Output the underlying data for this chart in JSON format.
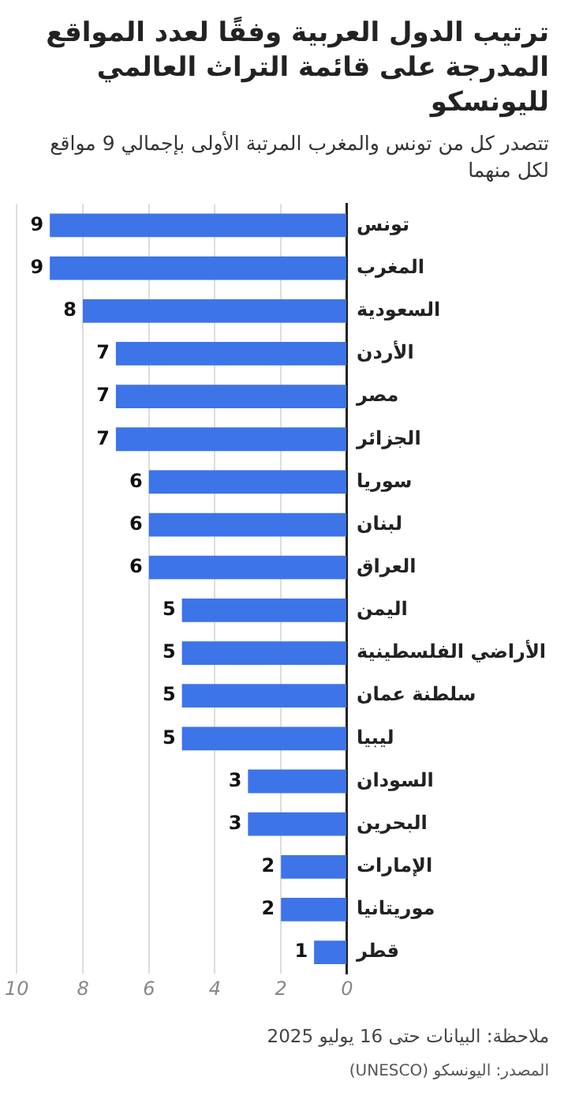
{
  "chart_data": {
    "type": "bar",
    "orientation": "horizontal",
    "title": "ترتيب الدول العربية وفقًا لعدد المواقع المدرجة على قائمة التراث العالمي لليونسكو",
    "subtitle": "تتصدر كل من تونس والمغرب المرتبة الأولى بإجمالي 9 مواقع لكل منهما",
    "categories": [
      "تونس",
      "المغرب",
      "السعودية",
      "الأردن",
      "مصر",
      "الجزائر",
      "سوريا",
      "لبنان",
      "العراق",
      "اليمن",
      "الأراضي الفلسطينية",
      "سلطنة عمان",
      "ليبيا",
      "السودان",
      "البحرين",
      "الإمارات",
      "موريتانيا",
      "قطر"
    ],
    "values": [
      9,
      9,
      8,
      7,
      7,
      7,
      6,
      6,
      6,
      5,
      5,
      5,
      5,
      3,
      3,
      2,
      2,
      1
    ],
    "color": "#3d74e8",
    "xlim": [
      10,
      0
    ],
    "xticks": [
      10,
      8,
      6,
      4,
      2,
      0
    ],
    "grid": "x",
    "data_labels": true,
    "legend": false,
    "annotations": [
      "ملاحظة: البيانات حتى 16 يوليو 2025",
      "المصدر: اليونسكو (UNESCO)"
    ]
  }
}
